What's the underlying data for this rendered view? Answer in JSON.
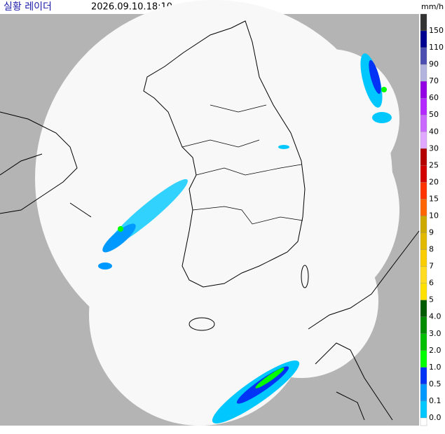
{
  "header": {
    "title": "실황 레이더",
    "time": "2026.09.10.18:10",
    "unit": "mm/h"
  },
  "legend": {
    "labels": [
      "150",
      "110",
      "90",
      "70",
      "60",
      "50",
      "40",
      "30",
      "25",
      "20",
      "15",
      "10",
      "9",
      "8",
      "7",
      "6",
      "5",
      "4.0",
      "3.0",
      "2.0",
      "1.0",
      "0.5",
      "0.1",
      "0.0"
    ],
    "colors": [
      "#333333",
      "#000390",
      "#4c4eb1",
      "#b3b4de",
      "#9300e4",
      "#b329ff",
      "#c969ff",
      "#e0a9ff",
      "#b40000",
      "#d20000",
      "#ff3300",
      "#ff6600",
      "#ccaa00",
      "#e0b900",
      "#f9cd00",
      "#ffdc1f",
      "#ffe100",
      "#005a00",
      "#008c00",
      "#00be00",
      "#00ff00",
      "#0033f5",
      "#0099ff",
      "#00c8ff",
      "#ffffff"
    ]
  }
}
